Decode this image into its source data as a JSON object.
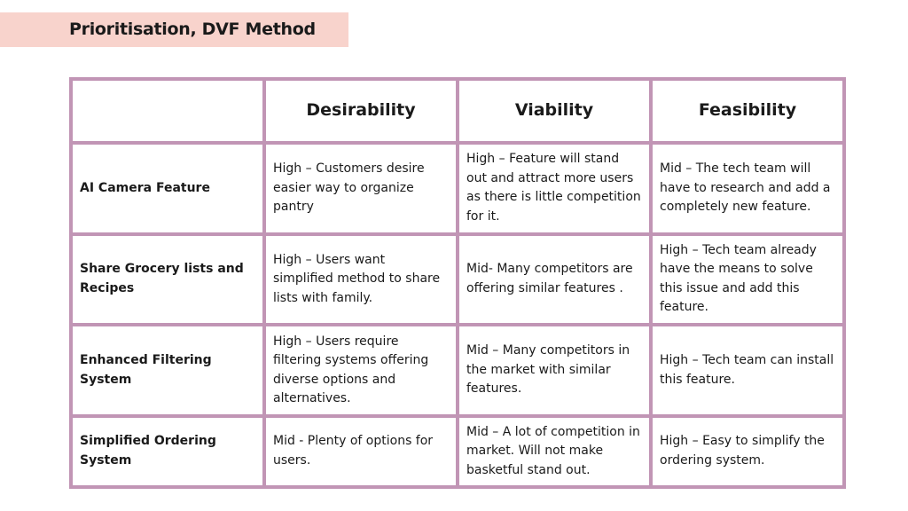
{
  "header": {
    "title": "Prioritisation, DVF Method"
  },
  "table": {
    "columns": [
      "Desirability",
      "Viability",
      "Feasibility"
    ],
    "rows": [
      {
        "label": "AI Camera Feature",
        "cells": [
          "High – Customers desire easier way to organize pantry",
          "High – Feature will stand out and attract more users as there is little competition for it.",
          "Mid – The tech team will have to research and add a completely new feature."
        ]
      },
      {
        "label": "Share Grocery lists and Recipes",
        "cells": [
          "High – Users want simplified method to share lists with family.",
          "Mid- Many competitors are offering similar features .",
          "High – Tech team already have the means to solve this issue and add this feature."
        ]
      },
      {
        "label": "Enhanced Filtering System",
        "cells": [
          "High – Users require filtering systems offering diverse options and alternatives.",
          "Mid – Many competitors in the market with similar features.",
          "High – Tech team can install this feature."
        ]
      },
      {
        "label": "Simplified Ordering System",
        "cells": [
          "Mid -  Plenty of options for users.",
          "Mid – A lot of competition in market. Will not make basketful stand out.",
          "High – Easy to simplify the ordering system."
        ]
      }
    ]
  }
}
